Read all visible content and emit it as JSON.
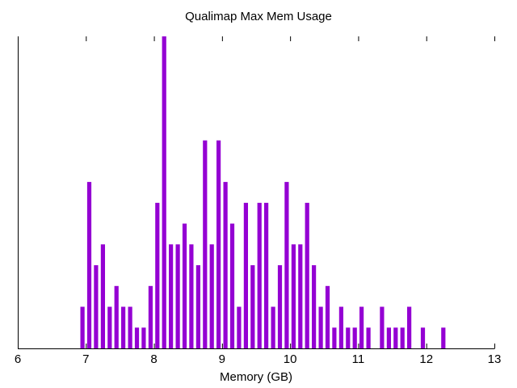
{
  "chart_data": {
    "type": "bar",
    "title": "Qualimap Max Mem Usage",
    "xlabel": "Memory (GB)",
    "ylabel": "",
    "xlim": [
      6,
      13
    ],
    "ylim": [
      0,
      15
    ],
    "grid": false,
    "legend": null,
    "bar_color": "#9400D3",
    "bin_width": 0.1,
    "x_ticks": [
      "6",
      "7",
      "8",
      "9",
      "10",
      "11",
      "12",
      "13"
    ],
    "x": [
      6.95,
      7.05,
      7.15,
      7.25,
      7.35,
      7.45,
      7.55,
      7.65,
      7.75,
      7.85,
      7.95,
      8.05,
      8.15,
      8.25,
      8.35,
      8.45,
      8.55,
      8.65,
      8.75,
      8.85,
      8.95,
      9.05,
      9.15,
      9.25,
      9.35,
      9.45,
      9.55,
      9.65,
      9.75,
      9.85,
      9.95,
      10.05,
      10.15,
      10.25,
      10.35,
      10.45,
      10.55,
      10.65,
      10.75,
      10.85,
      10.95,
      11.05,
      11.15,
      11.35,
      11.45,
      11.55,
      11.65,
      11.75,
      11.95,
      12.25
    ],
    "values": [
      2,
      8,
      4,
      5,
      2,
      3,
      2,
      2,
      1,
      1,
      3,
      7,
      15,
      5,
      5,
      6,
      5,
      4,
      10,
      5,
      10,
      8,
      6,
      2,
      7,
      4,
      7,
      7,
      2,
      4,
      8,
      5,
      5,
      7,
      4,
      2,
      3,
      1,
      2,
      1,
      1,
      2,
      1,
      2,
      1,
      1,
      1,
      2,
      1,
      1
    ]
  }
}
